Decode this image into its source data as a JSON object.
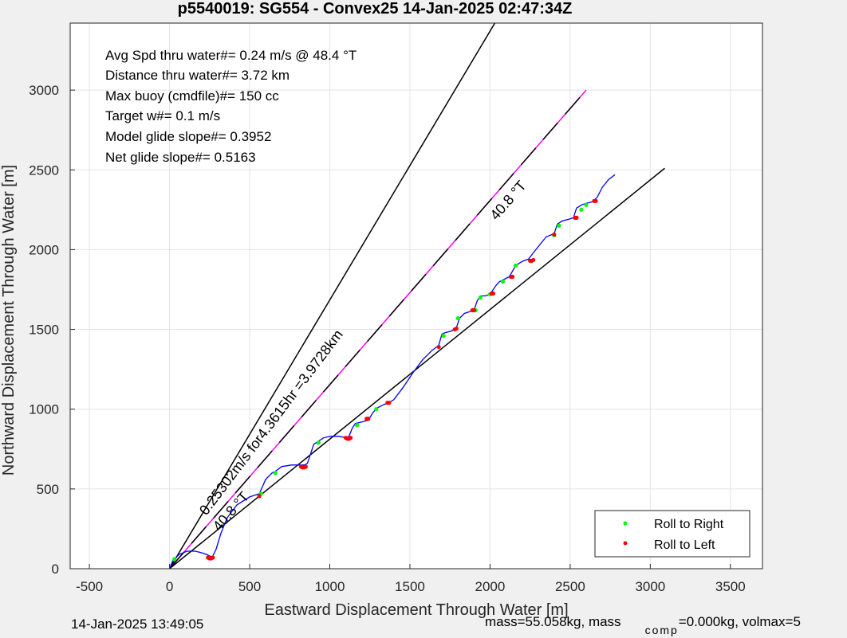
{
  "chart_data": {
    "type": "scatter",
    "title": "p5540019: SG554 - Convex25 14-Jan-2025 02:47:34Z",
    "xlabel": "Eastward Displacement Through Water [m]",
    "ylabel": "Northward Displacement Through Water [m]",
    "xlim": [
      -620,
      3700
    ],
    "ylim": [
      0,
      3420
    ],
    "xticks": [
      -500,
      0,
      500,
      1000,
      1500,
      2000,
      2500,
      3000,
      3500
    ],
    "yticks": [
      0,
      500,
      1000,
      1500,
      2000,
      2500,
      3000
    ],
    "grid": true,
    "legend_position": "bottom-right",
    "info_lines": [
      "Avg Spd thru water#=  0.24 m/s @  48.4        °T",
      "Distance thru water#=  3.72 km",
      "Max buoy (cmdfile)#= 150 cc",
      "Target w#= 0.1 m/s",
      "Model glide slope#= 0.3952",
      "Net glide slope#= 0.5163"
    ],
    "lines": [
      {
        "x": [
          0,
          2030
        ],
        "y": [
          0,
          3420
        ],
        "color": "#000000",
        "style": "solid"
      },
      {
        "x": [
          0,
          2600
        ],
        "y": [
          0,
          3000
        ],
        "color": "#ff00ff",
        "style": "solid"
      },
      {
        "x": [
          0,
          2600
        ],
        "y": [
          0,
          3000
        ],
        "color": "#000000",
        "style": "dashed"
      },
      {
        "x": [
          0,
          3090
        ],
        "y": [
          0,
          2510
        ],
        "color": "#000000",
        "style": "solid"
      }
    ],
    "annotations": [
      {
        "text": "0.25302m/s for4.3615hr =3.9728km",
        "x": 230,
        "y": 330,
        "angle": -53
      },
      {
        "text": "40.8 °T",
        "x": 310,
        "y": 230,
        "angle": -49
      },
      {
        "text": "40.8 °T",
        "x": 2040,
        "y": 2180,
        "angle": -49
      }
    ],
    "track": {
      "name": "track",
      "color": "#0000ff",
      "x": [
        0,
        20,
        60,
        110,
        160,
        200,
        230,
        250,
        260,
        270,
        290,
        320,
        360,
        420,
        500,
        560,
        600,
        640,
        660,
        700,
        760,
        820,
        840,
        860,
        880,
        900,
        930,
        960,
        1000,
        1060,
        1100,
        1120,
        1140,
        1160,
        1200,
        1240,
        1270,
        1300,
        1340,
        1370,
        1400,
        1460,
        1520,
        1580,
        1640,
        1680,
        1700,
        1720,
        1760,
        1790,
        1810,
        1840,
        1870,
        1900,
        1920,
        1940,
        1970,
        2000,
        2040,
        2060,
        2080,
        2120,
        2160,
        2190,
        2210,
        2240,
        2270,
        2310,
        2350,
        2400,
        2420,
        2450,
        2490,
        2520,
        2540,
        2570,
        2600,
        2640,
        2670,
        2700,
        2740,
        2780
      ],
      "y": [
        0,
        50,
        90,
        110,
        110,
        100,
        90,
        80,
        75,
        80,
        120,
        220,
        320,
        400,
        450,
        470,
        560,
        600,
        610,
        640,
        650,
        650,
        650,
        660,
        720,
        780,
        800,
        820,
        830,
        830,
        820,
        830,
        880,
        910,
        920,
        930,
        980,
        1010,
        1030,
        1040,
        1060,
        1140,
        1230,
        1310,
        1370,
        1400,
        1470,
        1480,
        1490,
        1510,
        1570,
        1600,
        1610,
        1620,
        1680,
        1710,
        1710,
        1720,
        1780,
        1800,
        1810,
        1830,
        1900,
        1920,
        1930,
        1940,
        1980,
        2030,
        2080,
        2100,
        2160,
        2180,
        2190,
        2200,
        2260,
        2280,
        2290,
        2300,
        2330,
        2390,
        2440,
        2470
      ]
    },
    "series": [
      {
        "name": "Roll to Right",
        "color": "#00ff00",
        "x": [
          30,
          570,
          660,
          930,
          1170,
          1290,
          1710,
          1800,
          1910,
          1940,
          2000,
          2080,
          2160,
          2400,
          2430,
          2570,
          2600
        ],
        "y": [
          60,
          470,
          600,
          790,
          900,
          1000,
          1460,
          1570,
          1620,
          1700,
          1720,
          1800,
          1900,
          2090,
          2150,
          2250,
          2280
        ]
      },
      {
        "name": "Roll to Left",
        "color": "#ff0000",
        "x": [
          240,
          250,
          260,
          270,
          560,
          820,
          830,
          840,
          850,
          1100,
          1110,
          1120,
          1130,
          1230,
          1240,
          1360,
          1370,
          1680,
          1780,
          1790,
          1890,
          1900,
          2010,
          2020,
          2130,
          2140,
          2250,
          2260,
          2270,
          2400,
          2530,
          2540,
          2650,
          2660
        ],
        "y": [
          70,
          65,
          65,
          70,
          455,
          640,
          635,
          635,
          640,
          820,
          815,
          815,
          820,
          940,
          940,
          1040,
          1040,
          1390,
          1500,
          1505,
          1620,
          1620,
          1725,
          1725,
          1830,
          1830,
          1930,
          1930,
          1935,
          2095,
          2200,
          2200,
          2305,
          2305
        ]
      }
    ]
  },
  "footer": {
    "timestamp": "14-Jan-2025 13:49:05",
    "mass_text": "mass=55.058kg, mass",
    "mass_sub": "comp",
    "mass_tail": "=0.000kg, volmax=5"
  }
}
